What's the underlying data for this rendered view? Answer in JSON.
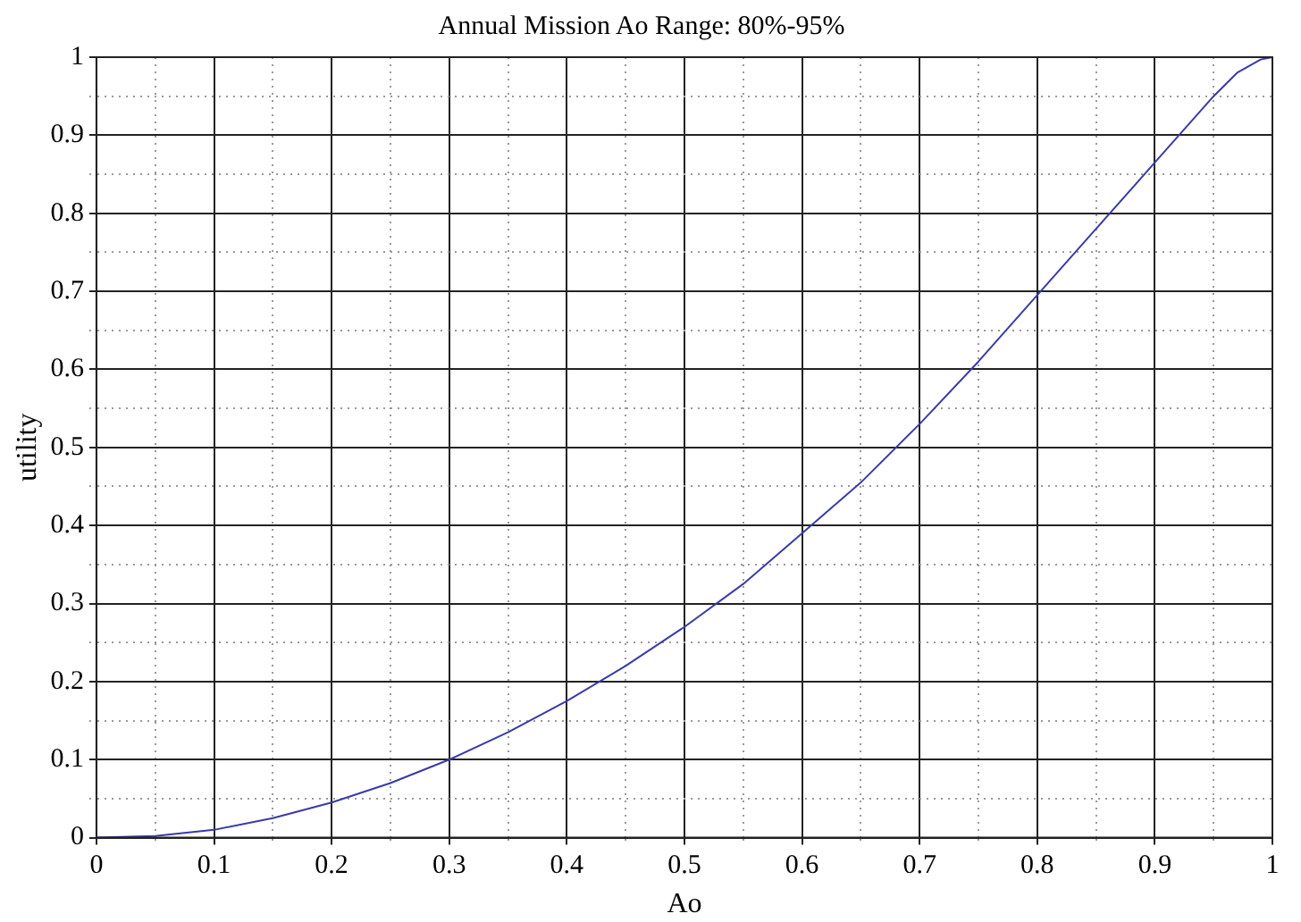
{
  "chart_data": {
    "type": "line",
    "title": "Annual Mission Ao Range: 80%-95%",
    "xlabel": "Ao",
    "ylabel": "utility",
    "x": [
      0,
      0.05,
      0.1,
      0.15,
      0.2,
      0.25,
      0.3,
      0.35,
      0.4,
      0.45,
      0.5,
      0.55,
      0.6,
      0.65,
      0.7,
      0.75,
      0.8,
      0.85,
      0.9,
      0.95,
      0.97,
      0.99,
      1
    ],
    "series": [
      {
        "color": "#3a3aa8",
        "values": [
          0,
          0.002,
          0.01,
          0.025,
          0.045,
          0.07,
          0.1,
          0.135,
          0.175,
          0.22,
          0.27,
          0.325,
          0.39,
          0.455,
          0.53,
          0.61,
          0.695,
          0.78,
          0.865,
          0.95,
          0.98,
          0.997,
          1
        ]
      }
    ],
    "xlim": [
      0,
      1
    ],
    "ylim": [
      0,
      1
    ],
    "xticks": [
      0,
      {
        "value": 0.05,
        "label": null
      },
      0.1,
      {
        "value": 0.15,
        "label": null
      },
      0.2,
      {
        "value": 0.25,
        "label": null
      },
      0.3,
      {
        "value": 0.35,
        "label": null
      },
      0.4,
      {
        "value": 0.45,
        "label": null
      },
      0.5,
      {
        "value": 0.55,
        "label": null
      },
      0.6,
      {
        "value": 0.65,
        "label": null
      },
      0.7,
      {
        "value": 0.75,
        "label": null
      },
      0.8,
      {
        "value": 0.85,
        "label": null
      },
      0.9,
      {
        "value": 0.95,
        "label": null
      },
      1
    ],
    "yticks": [
      0,
      {
        "value": 0.05,
        "label": null
      },
      0.1,
      {
        "value": 0.15,
        "label": null
      },
      0.2,
      {
        "value": 0.25,
        "label": null
      },
      0.3,
      {
        "value": 0.35,
        "label": null
      },
      0.4,
      {
        "value": 0.45,
        "label": null
      },
      0.5,
      {
        "value": 0.55,
        "label": null
      },
      0.6,
      {
        "value": 0.65,
        "label": null
      },
      0.7,
      {
        "value": 0.75,
        "label": null
      },
      0.8,
      {
        "value": 0.85,
        "label": null
      },
      0.9,
      {
        "value": 0.95,
        "label": null
      },
      1
    ],
    "grid": true,
    "legend": false,
    "marker": "none",
    "line_style": "solid"
  }
}
